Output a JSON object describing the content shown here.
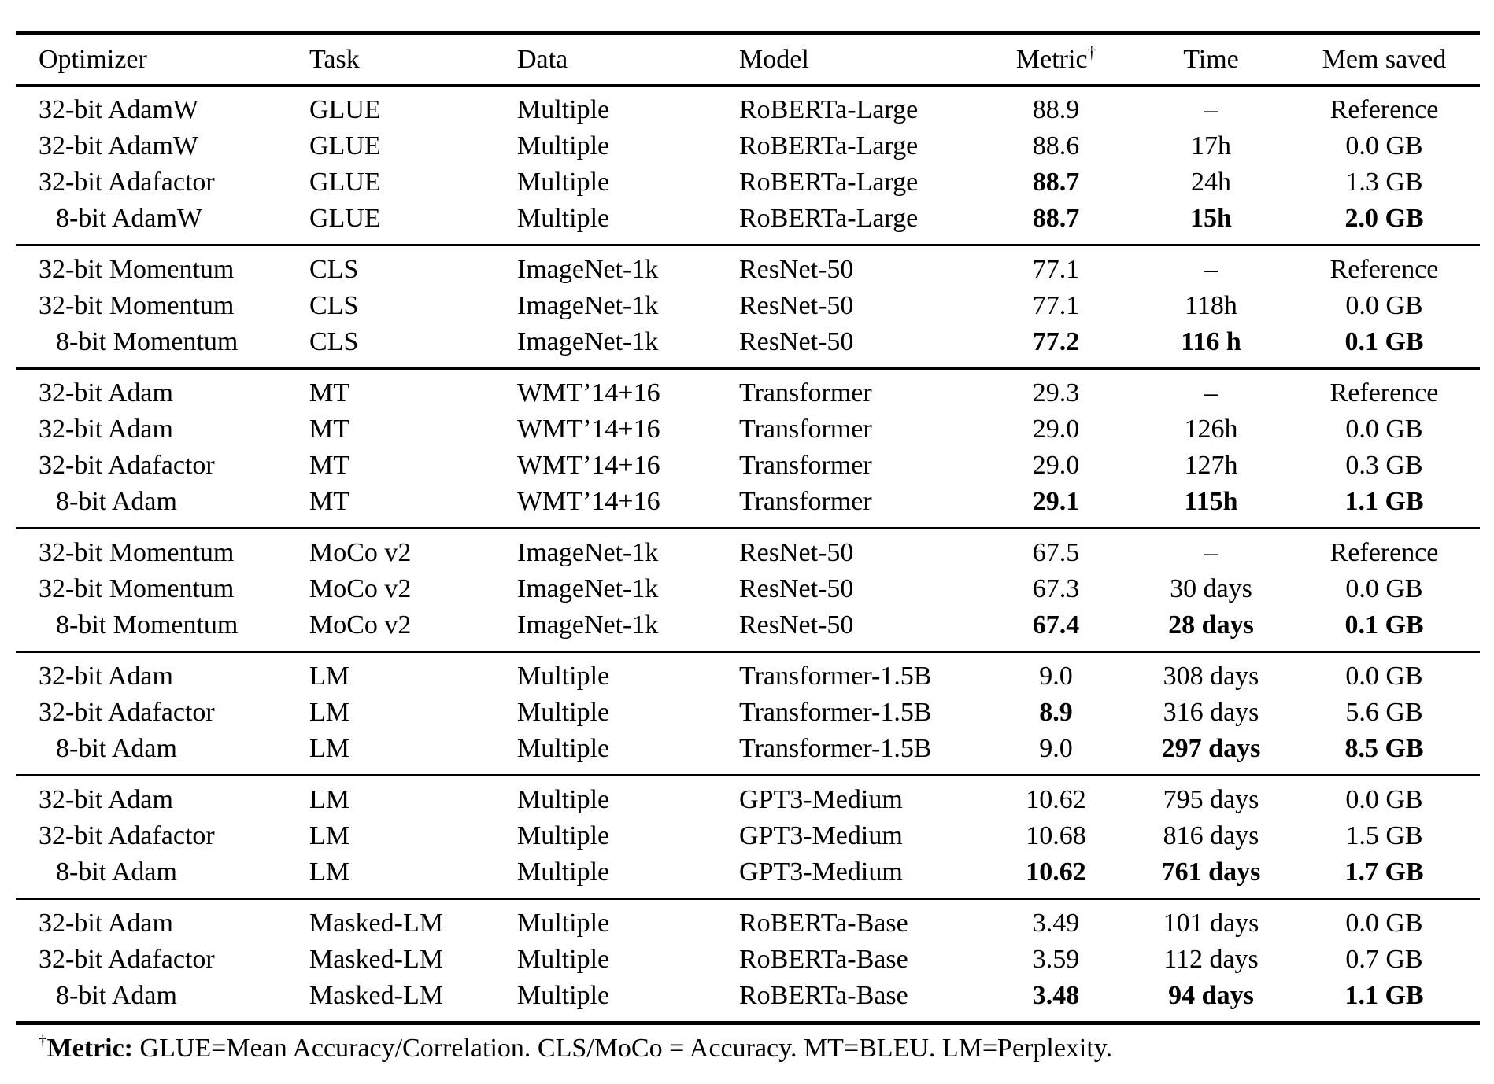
{
  "page": {
    "background": "#ffffff",
    "text_color": "#000000"
  },
  "table": {
    "columns": [
      {
        "id": "optimizer",
        "label": "Optimizer",
        "align": "left"
      },
      {
        "id": "task",
        "label": "Task",
        "align": "left"
      },
      {
        "id": "data",
        "label": "Data",
        "align": "left"
      },
      {
        "id": "model",
        "label": "Model",
        "align": "left"
      },
      {
        "id": "metric",
        "label": "Metric",
        "sup": "†",
        "align": "center"
      },
      {
        "id": "time",
        "label": "Time",
        "align": "center"
      },
      {
        "id": "mem",
        "label": "Mem saved",
        "align": "center"
      }
    ],
    "sections": [
      {
        "rows": [
          {
            "optimizer": "32-bit AdamW",
            "task": "GLUE",
            "data": "Multiple",
            "model": "RoBERTa-Large",
            "metric": {
              "v": "88.9",
              "b": false
            },
            "time": {
              "v": "–",
              "b": false
            },
            "mem": {
              "v": "Reference",
              "b": false
            }
          },
          {
            "optimizer": "32-bit AdamW",
            "task": "GLUE",
            "data": "Multiple",
            "model": "RoBERTa-Large",
            "metric": {
              "v": "88.6",
              "b": false
            },
            "time": {
              "v": "17h",
              "b": false
            },
            "mem": {
              "v": "0.0 GB",
              "b": false
            }
          },
          {
            "optimizer": "32-bit Adafactor",
            "task": "GLUE",
            "data": "Multiple",
            "model": "RoBERTa-Large",
            "metric": {
              "v": "88.7",
              "b": true
            },
            "time": {
              "v": "24h",
              "b": false
            },
            "mem": {
              "v": "1.3 GB",
              "b": false
            }
          },
          {
            "optimizer": "8-bit AdamW",
            "task": "GLUE",
            "data": "Multiple",
            "model": "RoBERTa-Large",
            "metric": {
              "v": "88.7",
              "b": true
            },
            "time": {
              "v": "15h",
              "b": true
            },
            "mem": {
              "v": "2.0 GB",
              "b": true
            }
          }
        ]
      },
      {
        "rows": [
          {
            "optimizer": "32-bit Momentum",
            "task": "CLS",
            "data": "ImageNet-1k",
            "model": "ResNet-50",
            "metric": {
              "v": "77.1",
              "b": false
            },
            "time": {
              "v": "–",
              "b": false
            },
            "mem": {
              "v": "Reference",
              "b": false
            }
          },
          {
            "optimizer": "32-bit Momentum",
            "task": "CLS",
            "data": "ImageNet-1k",
            "model": "ResNet-50",
            "metric": {
              "v": "77.1",
              "b": false
            },
            "time": {
              "v": "118h",
              "b": false
            },
            "mem": {
              "v": "0.0 GB",
              "b": false
            }
          },
          {
            "optimizer": "8-bit Momentum",
            "task": "CLS",
            "data": "ImageNet-1k",
            "model": "ResNet-50",
            "metric": {
              "v": "77.2",
              "b": true
            },
            "time": {
              "v": "116 h",
              "b": true
            },
            "mem": {
              "v": "0.1 GB",
              "b": true
            }
          }
        ]
      },
      {
        "rows": [
          {
            "optimizer": "32-bit Adam",
            "task": "MT",
            "data": "WMT’14+16",
            "model": "Transformer",
            "metric": {
              "v": "29.3",
              "b": false
            },
            "time": {
              "v": "–",
              "b": false
            },
            "mem": {
              "v": "Reference",
              "b": false
            }
          },
          {
            "optimizer": "32-bit Adam",
            "task": "MT",
            "data": "WMT’14+16",
            "model": "Transformer",
            "metric": {
              "v": "29.0",
              "b": false
            },
            "time": {
              "v": "126h",
              "b": false
            },
            "mem": {
              "v": "0.0 GB",
              "b": false
            }
          },
          {
            "optimizer": "32-bit Adafactor",
            "task": "MT",
            "data": "WMT’14+16",
            "model": "Transformer",
            "metric": {
              "v": "29.0",
              "b": false
            },
            "time": {
              "v": "127h",
              "b": false
            },
            "mem": {
              "v": "0.3 GB",
              "b": false
            }
          },
          {
            "optimizer": "8-bit Adam",
            "task": "MT",
            "data": "WMT’14+16",
            "model": "Transformer",
            "metric": {
              "v": "29.1",
              "b": true
            },
            "time": {
              "v": "115h",
              "b": true
            },
            "mem": {
              "v": "1.1 GB",
              "b": true
            }
          }
        ]
      },
      {
        "rows": [
          {
            "optimizer": "32-bit Momentum",
            "task": "MoCo v2",
            "data": "ImageNet-1k",
            "model": "ResNet-50",
            "metric": {
              "v": "67.5",
              "b": false
            },
            "time": {
              "v": "–",
              "b": false
            },
            "mem": {
              "v": "Reference",
              "b": false
            }
          },
          {
            "optimizer": "32-bit Momentum",
            "task": "MoCo v2",
            "data": "ImageNet-1k",
            "model": "ResNet-50",
            "metric": {
              "v": "67.3",
              "b": false
            },
            "time": {
              "v": "30 days",
              "b": false
            },
            "mem": {
              "v": "0.0 GB",
              "b": false
            }
          },
          {
            "optimizer": "8-bit Momentum",
            "task": "MoCo v2",
            "data": "ImageNet-1k",
            "model": "ResNet-50",
            "metric": {
              "v": "67.4",
              "b": true
            },
            "time": {
              "v": "28 days",
              "b": true
            },
            "mem": {
              "v": "0.1 GB",
              "b": true
            }
          }
        ]
      },
      {
        "rows": [
          {
            "optimizer": "32-bit Adam",
            "task": "LM",
            "data": "Multiple",
            "model": "Transformer-1.5B",
            "metric": {
              "v": "9.0",
              "b": false
            },
            "time": {
              "v": "308 days",
              "b": false
            },
            "mem": {
              "v": "0.0 GB",
              "b": false
            }
          },
          {
            "optimizer": "32-bit Adafactor",
            "task": "LM",
            "data": "Multiple",
            "model": "Transformer-1.5B",
            "metric": {
              "v": "8.9",
              "b": true
            },
            "time": {
              "v": "316 days",
              "b": false
            },
            "mem": {
              "v": "5.6 GB",
              "b": false
            }
          },
          {
            "optimizer": "8-bit Adam",
            "task": "LM",
            "data": "Multiple",
            "model": "Transformer-1.5B",
            "metric": {
              "v": "9.0",
              "b": false
            },
            "time": {
              "v": "297 days",
              "b": true
            },
            "mem": {
              "v": "8.5 GB",
              "b": true
            }
          }
        ]
      },
      {
        "rows": [
          {
            "optimizer": "32-bit Adam",
            "task": "LM",
            "data": "Multiple",
            "model": "GPT3-Medium",
            "metric": {
              "v": "10.62",
              "b": false
            },
            "time": {
              "v": "795 days",
              "b": false
            },
            "mem": {
              "v": "0.0 GB",
              "b": false
            }
          },
          {
            "optimizer": "32-bit Adafactor",
            "task": "LM",
            "data": "Multiple",
            "model": "GPT3-Medium",
            "metric": {
              "v": "10.68",
              "b": false
            },
            "time": {
              "v": "816 days",
              "b": false
            },
            "mem": {
              "v": "1.5 GB",
              "b": false
            }
          },
          {
            "optimizer": "8-bit Adam",
            "task": "LM",
            "data": "Multiple",
            "model": "GPT3-Medium",
            "metric": {
              "v": "10.62",
              "b": true
            },
            "time": {
              "v": "761 days",
              "b": true
            },
            "mem": {
              "v": "1.7 GB",
              "b": true
            }
          }
        ]
      },
      {
        "rows": [
          {
            "optimizer": "32-bit Adam",
            "task": "Masked-LM",
            "data": "Multiple",
            "model": "RoBERTa-Base",
            "metric": {
              "v": "3.49",
              "b": false
            },
            "time": {
              "v": "101 days",
              "b": false
            },
            "mem": {
              "v": "0.0 GB",
              "b": false
            }
          },
          {
            "optimizer": "32-bit Adafactor",
            "task": "Masked-LM",
            "data": "Multiple",
            "model": "RoBERTa-Base",
            "metric": {
              "v": "3.59",
              "b": false
            },
            "time": {
              "v": "112 days",
              "b": false
            },
            "mem": {
              "v": "0.7 GB",
              "b": false
            }
          },
          {
            "optimizer": "8-bit Adam",
            "task": "Masked-LM",
            "data": "Multiple",
            "model": "RoBERTa-Base",
            "metric": {
              "v": "3.48",
              "b": true
            },
            "time": {
              "v": "94 days",
              "b": true
            },
            "mem": {
              "v": "1.1 GB",
              "b": true
            }
          }
        ]
      }
    ]
  },
  "footnote": {
    "dagger": "†",
    "label": "Metric:",
    "text": " GLUE=Mean Accuracy/Correlation. CLS/MoCo = Accuracy. MT=BLEU. LM=Perplexity."
  }
}
